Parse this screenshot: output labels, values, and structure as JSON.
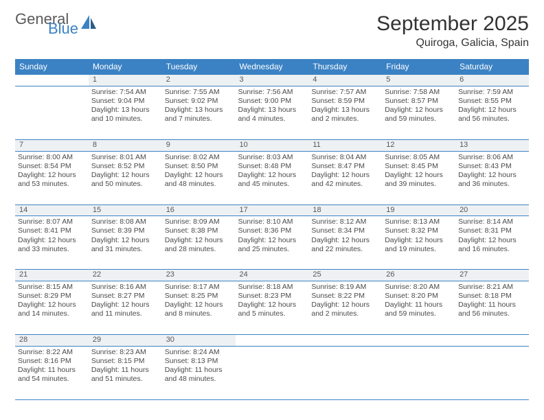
{
  "brand": {
    "part1": "General",
    "part2": "Blue",
    "color_primary": "#3b82c4",
    "color_text": "#5a5a5a"
  },
  "title": "September 2025",
  "location": "Quiroga, Galicia, Spain",
  "colors": {
    "header_bg": "#3b82c4",
    "header_fg": "#ffffff",
    "rule": "#3b82c4",
    "daynum_bg": "#eef1f3",
    "body_text": "#4a4a4a"
  },
  "day_headers": [
    "Sunday",
    "Monday",
    "Tuesday",
    "Wednesday",
    "Thursday",
    "Friday",
    "Saturday"
  ],
  "weeks": [
    {
      "nums": [
        "",
        "1",
        "2",
        "3",
        "4",
        "5",
        "6"
      ],
      "cells": [
        {
          "text": ""
        },
        {
          "text": "Sunrise: 7:54 AM\nSunset: 9:04 PM\nDaylight: 13 hours and 10 minutes."
        },
        {
          "text": "Sunrise: 7:55 AM\nSunset: 9:02 PM\nDaylight: 13 hours and 7 minutes."
        },
        {
          "text": "Sunrise: 7:56 AM\nSunset: 9:00 PM\nDaylight: 13 hours and 4 minutes."
        },
        {
          "text": "Sunrise: 7:57 AM\nSunset: 8:59 PM\nDaylight: 13 hours and 2 minutes."
        },
        {
          "text": "Sunrise: 7:58 AM\nSunset: 8:57 PM\nDaylight: 12 hours and 59 minutes."
        },
        {
          "text": "Sunrise: 7:59 AM\nSunset: 8:55 PM\nDaylight: 12 hours and 56 minutes."
        }
      ]
    },
    {
      "nums": [
        "7",
        "8",
        "9",
        "10",
        "11",
        "12",
        "13"
      ],
      "cells": [
        {
          "text": "Sunrise: 8:00 AM\nSunset: 8:54 PM\nDaylight: 12 hours and 53 minutes."
        },
        {
          "text": "Sunrise: 8:01 AM\nSunset: 8:52 PM\nDaylight: 12 hours and 50 minutes."
        },
        {
          "text": "Sunrise: 8:02 AM\nSunset: 8:50 PM\nDaylight: 12 hours and 48 minutes."
        },
        {
          "text": "Sunrise: 8:03 AM\nSunset: 8:48 PM\nDaylight: 12 hours and 45 minutes."
        },
        {
          "text": "Sunrise: 8:04 AM\nSunset: 8:47 PM\nDaylight: 12 hours and 42 minutes."
        },
        {
          "text": "Sunrise: 8:05 AM\nSunset: 8:45 PM\nDaylight: 12 hours and 39 minutes."
        },
        {
          "text": "Sunrise: 8:06 AM\nSunset: 8:43 PM\nDaylight: 12 hours and 36 minutes."
        }
      ]
    },
    {
      "nums": [
        "14",
        "15",
        "16",
        "17",
        "18",
        "19",
        "20"
      ],
      "cells": [
        {
          "text": "Sunrise: 8:07 AM\nSunset: 8:41 PM\nDaylight: 12 hours and 33 minutes."
        },
        {
          "text": "Sunrise: 8:08 AM\nSunset: 8:39 PM\nDaylight: 12 hours and 31 minutes."
        },
        {
          "text": "Sunrise: 8:09 AM\nSunset: 8:38 PM\nDaylight: 12 hours and 28 minutes."
        },
        {
          "text": "Sunrise: 8:10 AM\nSunset: 8:36 PM\nDaylight: 12 hours and 25 minutes."
        },
        {
          "text": "Sunrise: 8:12 AM\nSunset: 8:34 PM\nDaylight: 12 hours and 22 minutes."
        },
        {
          "text": "Sunrise: 8:13 AM\nSunset: 8:32 PM\nDaylight: 12 hours and 19 minutes."
        },
        {
          "text": "Sunrise: 8:14 AM\nSunset: 8:31 PM\nDaylight: 12 hours and 16 minutes."
        }
      ]
    },
    {
      "nums": [
        "21",
        "22",
        "23",
        "24",
        "25",
        "26",
        "27"
      ],
      "cells": [
        {
          "text": "Sunrise: 8:15 AM\nSunset: 8:29 PM\nDaylight: 12 hours and 14 minutes."
        },
        {
          "text": "Sunrise: 8:16 AM\nSunset: 8:27 PM\nDaylight: 12 hours and 11 minutes."
        },
        {
          "text": "Sunrise: 8:17 AM\nSunset: 8:25 PM\nDaylight: 12 hours and 8 minutes."
        },
        {
          "text": "Sunrise: 8:18 AM\nSunset: 8:23 PM\nDaylight: 12 hours and 5 minutes."
        },
        {
          "text": "Sunrise: 8:19 AM\nSunset: 8:22 PM\nDaylight: 12 hours and 2 minutes."
        },
        {
          "text": "Sunrise: 8:20 AM\nSunset: 8:20 PM\nDaylight: 11 hours and 59 minutes."
        },
        {
          "text": "Sunrise: 8:21 AM\nSunset: 8:18 PM\nDaylight: 11 hours and 56 minutes."
        }
      ]
    },
    {
      "nums": [
        "28",
        "29",
        "30",
        "",
        "",
        "",
        ""
      ],
      "cells": [
        {
          "text": "Sunrise: 8:22 AM\nSunset: 8:16 PM\nDaylight: 11 hours and 54 minutes."
        },
        {
          "text": "Sunrise: 8:23 AM\nSunset: 8:15 PM\nDaylight: 11 hours and 51 minutes."
        },
        {
          "text": "Sunrise: 8:24 AM\nSunset: 8:13 PM\nDaylight: 11 hours and 48 minutes."
        },
        {
          "text": ""
        },
        {
          "text": ""
        },
        {
          "text": ""
        },
        {
          "text": ""
        }
      ]
    }
  ]
}
